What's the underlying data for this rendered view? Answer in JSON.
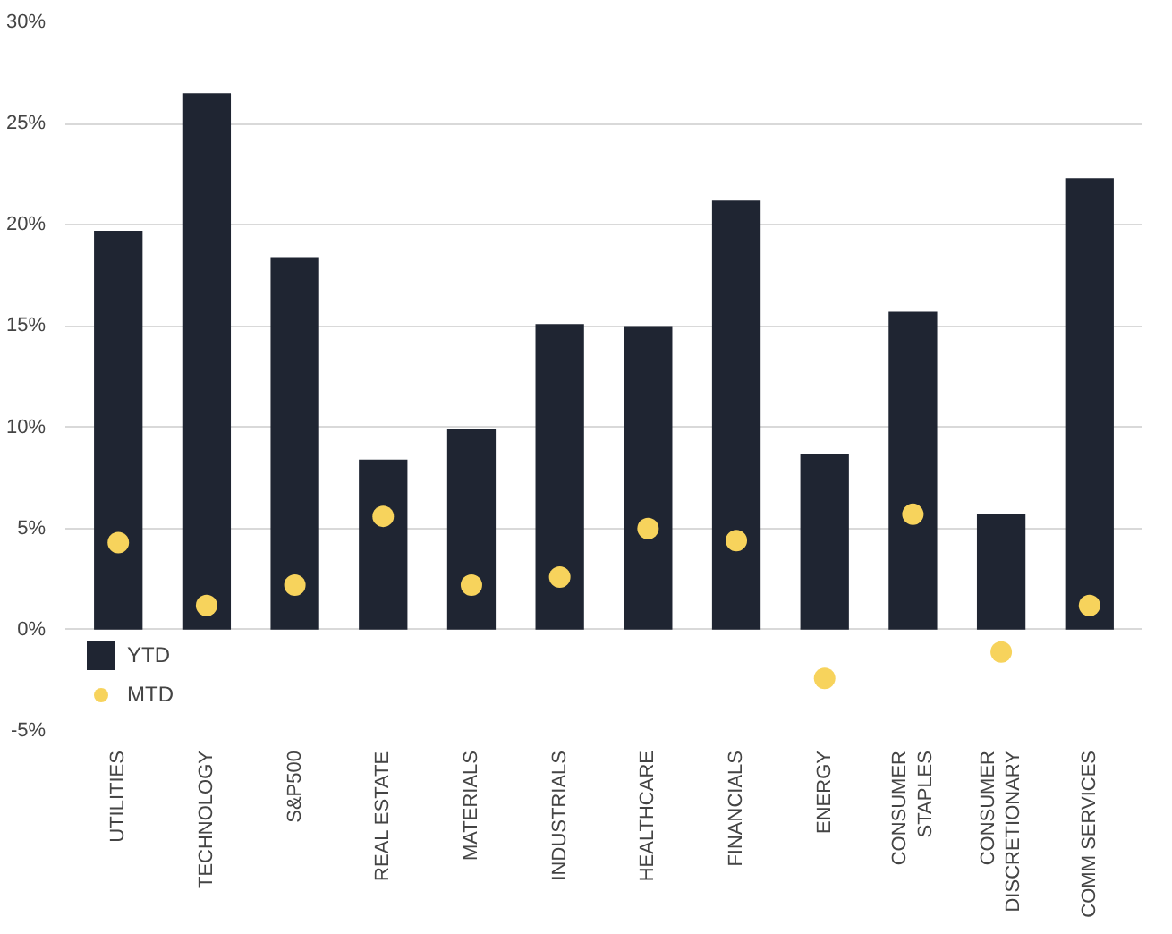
{
  "chart_data": {
    "type": "bar",
    "categories": [
      "UTILITIES",
      "TECHNOLOGY",
      "S&P500",
      "REAL ESTATE",
      "MATERIALS",
      "INDUSTRIALS",
      "HEALTHCARE",
      "FINANCIALS",
      "ENERGY",
      "CONSUMER STAPLES",
      "CONSUMER DISCRETIONARY",
      "COMM SERVICES"
    ],
    "series": [
      {
        "name": "YTD",
        "color": "#1f2532",
        "values": [
          19.7,
          26.5,
          18.4,
          8.4,
          9.9,
          15.1,
          15.0,
          21.2,
          8.7,
          15.7,
          5.7,
          22.3
        ]
      },
      {
        "name": "MTD",
        "type": "scatter",
        "color": "#f7d35c",
        "marker": "circle",
        "values": [
          4.3,
          1.2,
          2.2,
          5.6,
          2.2,
          2.6,
          5.0,
          4.4,
          -2.4,
          5.7,
          -1.1,
          1.2
        ]
      }
    ],
    "ylim": [
      -5,
      30
    ],
    "yticks": [
      {
        "value": -5,
        "label": "-5%"
      },
      {
        "value": 0,
        "label": "0%"
      },
      {
        "value": 5,
        "label": "5%"
      },
      {
        "value": 10,
        "label": "10%"
      },
      {
        "value": 15,
        "label": "15%"
      },
      {
        "value": 20,
        "label": "20%"
      },
      {
        "value": 25,
        "label": "25%"
      },
      {
        "value": 30,
        "label": "30%"
      }
    ],
    "grid": "y",
    "legend": "bottom left"
  }
}
